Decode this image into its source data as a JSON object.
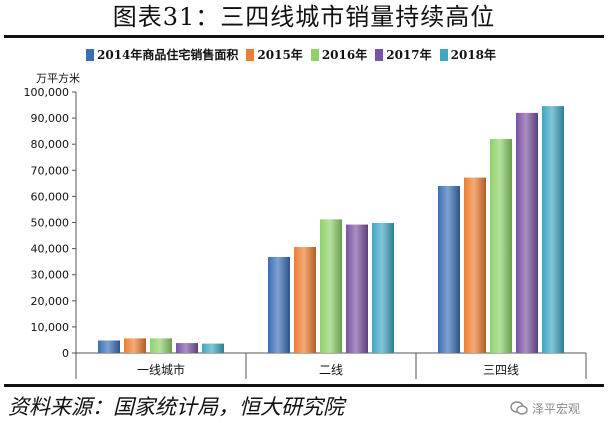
{
  "page": {
    "title": "图表31：三四线城市销量持续高位",
    "source": "资料来源：国家统计局，恒大研究院",
    "watermark": "泽平宏观"
  },
  "chart_data": {
    "type": "bar",
    "title": "",
    "ylabel": "万平方米",
    "xlabel": "",
    "ylim": [
      0,
      100000
    ],
    "yticks": [
      "0",
      "10,000",
      "20,000",
      "30,000",
      "40,000",
      "50,000",
      "60,000",
      "70,000",
      "80,000",
      "90,000",
      "100,000"
    ],
    "categories": [
      "一线城市",
      "二线",
      "三四线"
    ],
    "series": [
      {
        "name": "2014年商品住宅销售面积",
        "color": "#3a6fb5",
        "values": [
          4800,
          36800,
          64000
        ]
      },
      {
        "name": "2015年",
        "color": "#ed7d31",
        "values": [
          5600,
          40600,
          67200
        ]
      },
      {
        "name": "2016年",
        "color": "#8fd16a",
        "values": [
          5600,
          51200,
          82000
        ]
      },
      {
        "name": "2017年",
        "color": "#7a52a3",
        "values": [
          3800,
          49200,
          92000
        ]
      },
      {
        "name": "2018年",
        "color": "#3fa6c2",
        "values": [
          3600,
          49800,
          94600
        ]
      }
    ],
    "legend": "top",
    "grid": false
  }
}
